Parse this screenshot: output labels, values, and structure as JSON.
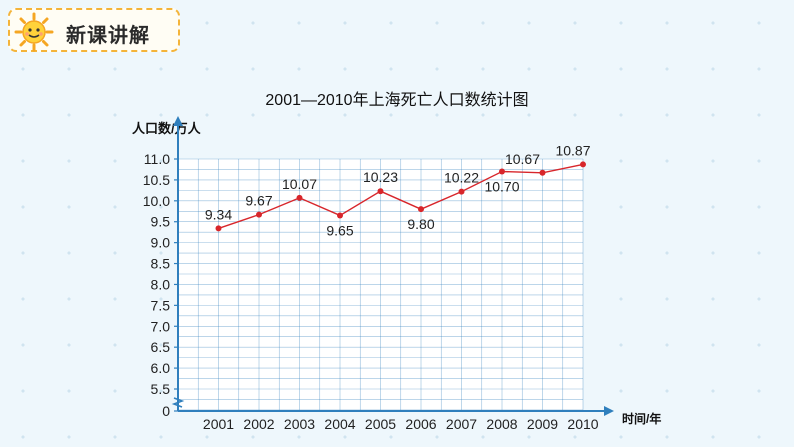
{
  "header": {
    "title": "新课讲解",
    "icon": "sun-icon",
    "accent": "#f4b43a"
  },
  "chart_data": {
    "type": "line",
    "title": "2001—2010年上海死亡人口数统计图",
    "ylabel": "人口数/万人",
    "xlabel": "时间/年",
    "categories": [
      "2001",
      "2002",
      "2003",
      "2004",
      "2005",
      "2006",
      "2007",
      "2008",
      "2009",
      "2010"
    ],
    "values": [
      9.34,
      9.67,
      10.07,
      9.65,
      10.23,
      9.8,
      10.22,
      10.7,
      10.67,
      10.87
    ],
    "value_labels": [
      "9.34",
      "9.67",
      "10.07",
      "9.65",
      "10.23",
      "9.80",
      "10.22",
      "10.70",
      "10.67",
      "10.87"
    ],
    "y_ticks": [
      "0",
      "5.5",
      "6.0",
      "6.5",
      "7.0",
      "7.5",
      "8.0",
      "8.5",
      "9.0",
      "9.5",
      "10.0",
      "10.5",
      "11.0"
    ],
    "ylim": [
      5.5,
      11.0
    ],
    "axis_break": true,
    "grid": true,
    "colors": {
      "line": "#d8262b",
      "grid": "#3c86c0",
      "axis": "#2f7fbd"
    }
  }
}
